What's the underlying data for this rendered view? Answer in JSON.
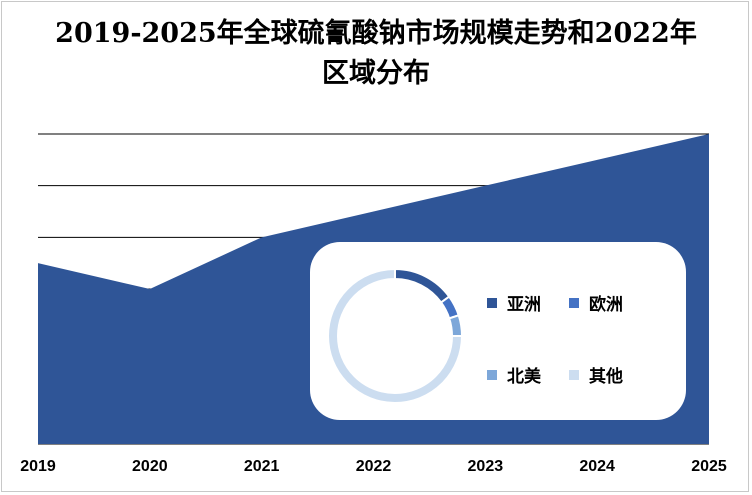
{
  "title_line1": "2019-2025年全球硫氰酸钠市场规模走势和2022年",
  "title_line2": "区域分布",
  "chart_data": [
    {
      "type": "area",
      "title": "2019-2025年全球硫氰酸钠市场规模走势",
      "categories": [
        "2019",
        "2020",
        "2021",
        "2022",
        "2023",
        "2024",
        "2025"
      ],
      "values": [
        3.5,
        3.0,
        4.0,
        4.5,
        5.0,
        5.5,
        6.0
      ],
      "ylim": [
        0,
        6
      ],
      "y_unit": "relative (no axis labels shown)",
      "grid": true,
      "color": "#2F5597"
    },
    {
      "type": "pie",
      "donut": true,
      "title": "2022年区域分布",
      "labels": [
        "亚洲",
        "欧洲",
        "北美",
        "其他"
      ],
      "values": [
        15,
        5,
        5,
        75
      ],
      "colors": [
        "#2F5597",
        "#4472C4",
        "#7DA7D9",
        "#CCDDF0"
      ],
      "legend": "right"
    }
  ]
}
